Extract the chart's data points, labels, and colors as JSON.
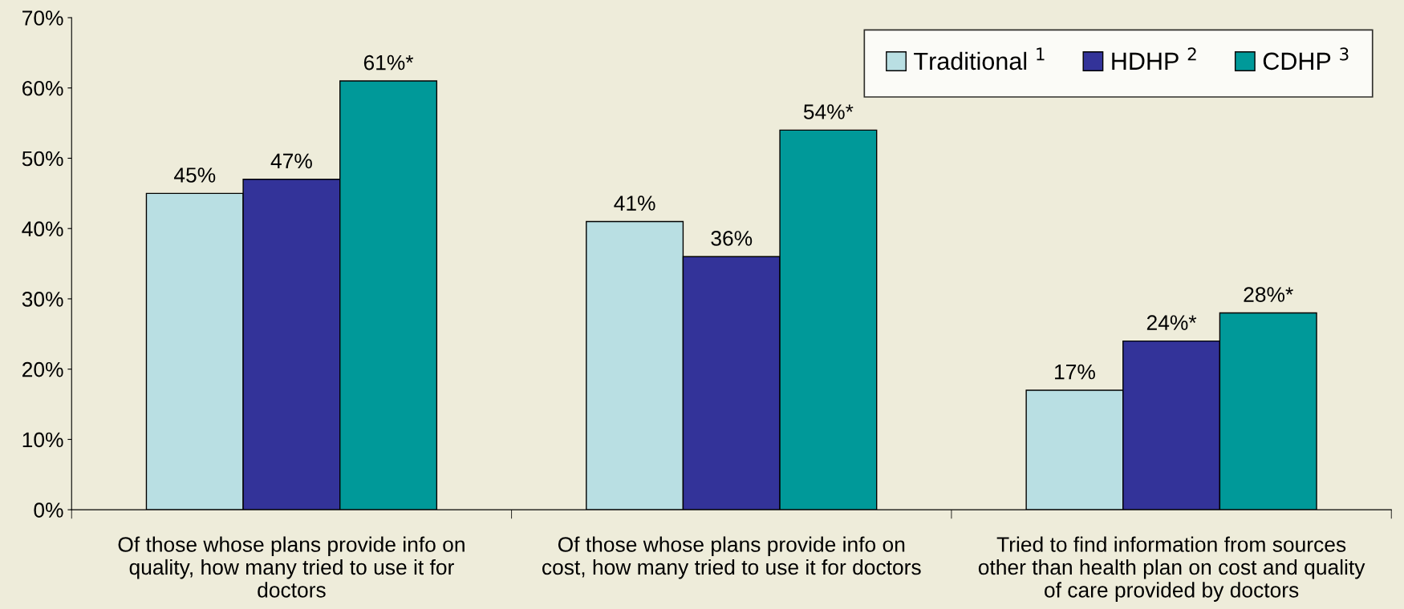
{
  "chart_data": {
    "type": "bar",
    "categories": [
      "Of those whose plans provide info on\nquality, how many tried to use it for\ndoctors",
      "Of those whose plans provide info on\ncost, how many tried to use it for doctors",
      "Tried to find information from sources\nother than health plan on cost and quality\nof care provided by doctors"
    ],
    "series": [
      {
        "name": "Traditional $^{1}$",
        "color": "#b9dfe3",
        "values": [
          45,
          41,
          17
        ],
        "value_labels": [
          "45%",
          "41%",
          "17%"
        ]
      },
      {
        "name": "HDHP $^{2}$",
        "color": "#333399",
        "values": [
          47,
          36,
          24
        ],
        "value_labels": [
          "47%",
          "36%",
          "24%*"
        ]
      },
      {
        "name": "CDHP $^{3}$",
        "color": "#009999",
        "values": [
          61,
          54,
          28
        ],
        "value_labels": [
          "61%*",
          "54%*",
          "28%*"
        ]
      }
    ],
    "ylim": [
      0,
      70
    ],
    "yticks": [
      {
        "value": 0,
        "label": "0%"
      },
      {
        "value": 10,
        "label": "10%"
      },
      {
        "value": 20,
        "label": "20%"
      },
      {
        "value": 30,
        "label": "30%"
      },
      {
        "value": 40,
        "label": "40%"
      },
      {
        "value": 50,
        "label": "50%"
      },
      {
        "value": 60,
        "label": "60%"
      },
      {
        "value": 70,
        "label": "70%"
      }
    ],
    "grid": false,
    "legend": "top right"
  }
}
